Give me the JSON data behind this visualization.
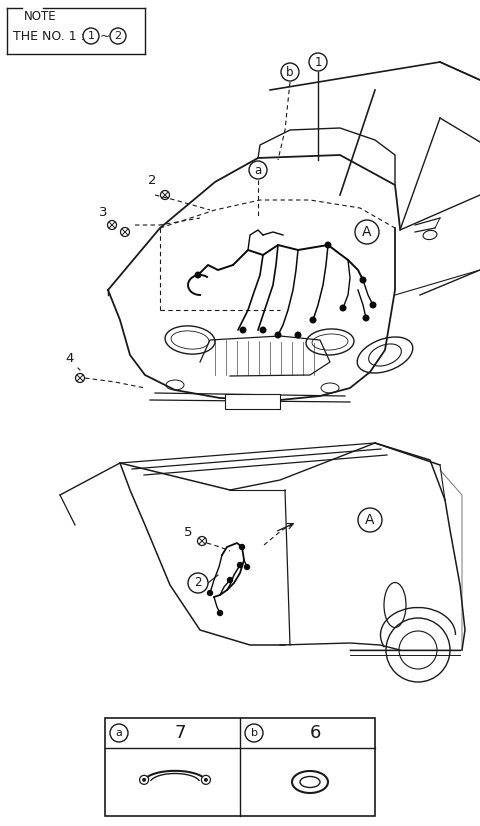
{
  "bg_color": "#ffffff",
  "line_color": "#1a1a1a",
  "note_text": "NOTE",
  "note_sub": "THE NO. 1 : ",
  "label_A": "A",
  "label_a": "a",
  "label_b": "b",
  "label_1": "1",
  "label_2": "2",
  "label_3": "3",
  "label_4": "4",
  "label_5": "5",
  "table_a_num": "7",
  "table_b_num": "6",
  "fig_width": 4.8,
  "fig_height": 8.26,
  "dpi": 100
}
